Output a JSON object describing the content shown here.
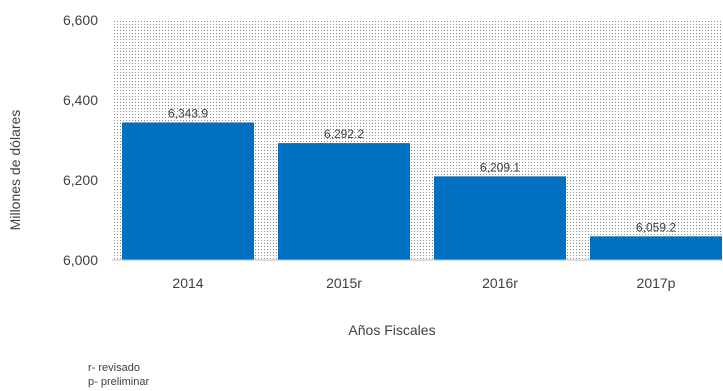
{
  "chart_data": {
    "type": "bar",
    "categories": [
      "2014",
      "2015r",
      "2016r",
      "2017p"
    ],
    "values": [
      6343.9,
      6292.2,
      6209.1,
      6059.2
    ],
    "data_labels": [
      "6,343.9",
      "6,292.2",
      "6,209.1",
      "6,059.2"
    ],
    "xlabel": "Años Fiscales",
    "ylabel": "Millones de dólares",
    "ylim": [
      6000,
      6600
    ],
    "yticks": [
      6000,
      6200,
      6400,
      6600
    ],
    "ytick_labels": [
      "6,000",
      "6,200",
      "6,400",
      "6,600"
    ],
    "bar_color": "#0070C0",
    "background_pattern": "dotted",
    "grid": false,
    "legend": "none"
  },
  "footnotes": [
    "r- revisado",
    "p- preliminar"
  ]
}
